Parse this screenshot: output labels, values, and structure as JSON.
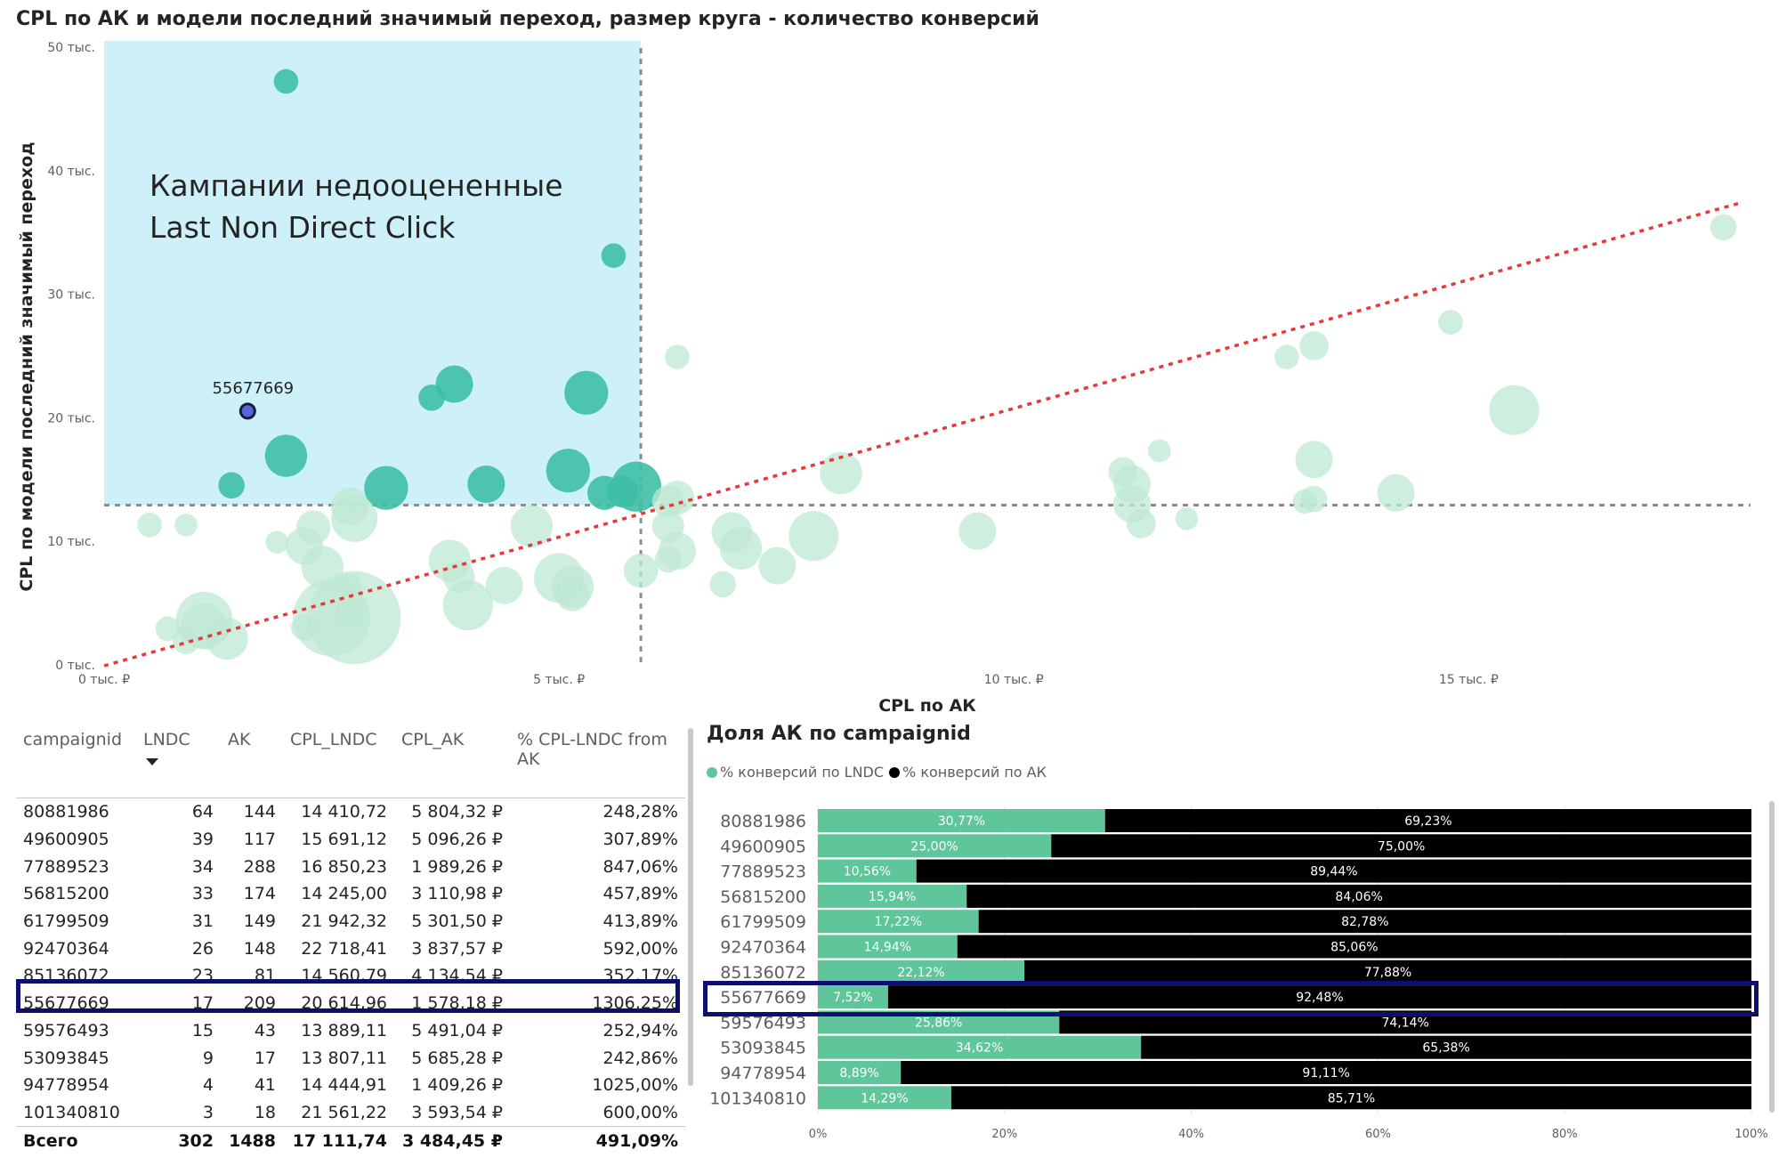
{
  "chart_data": [
    {
      "type": "scatter",
      "title": "CPL по АК и модели последний значимый переход, размер круга - количество конверсий",
      "xlabel": "CPL по АК",
      "ylabel": "CPL по модели последний значимый переход",
      "xlim": [
        0,
        18000
      ],
      "ylim": [
        0,
        50000
      ],
      "x_ticks": [
        0,
        5000,
        10000,
        15000
      ],
      "x_tick_labels": [
        "0 тыс. ₽",
        "5 тыс. ₽",
        "10 тыс. ₽",
        "15 тыс. ₽"
      ],
      "y_ticks": [
        0,
        10000,
        20000,
        30000,
        40000,
        50000
      ],
      "y_tick_labels": [
        "0 тыс.",
        "10 тыс.",
        "20 тыс.",
        "30 тыс.",
        "40 тыс.",
        "50 тыс."
      ],
      "threshold_x": 5900,
      "threshold_y": 13000,
      "trend_line": {
        "x": [
          0,
          18000
        ],
        "y": [
          0,
          37500
        ]
      },
      "region_annotation": {
        "line1": "Кампании недооцененные",
        "line2": "Last Non Direct Click"
      },
      "highlight": {
        "label": "55677669",
        "x": 1578,
        "y": 20615
      },
      "colors": {
        "region": "#cdf0f9",
        "in_region": "#3fbfa6",
        "out_region": "#bde8d3",
        "trend": "#e8393a",
        "threshold": "#8c8c8c",
        "highlight": "#5566dd"
      },
      "points": [
        {
          "x": 2000,
          "y": 47300,
          "c": 5
        },
        {
          "x": 5600,
          "y": 33200,
          "c": 5
        },
        {
          "x": 3850,
          "y": 22800,
          "c": 15
        },
        {
          "x": 3600,
          "y": 21700,
          "c": 6
        },
        {
          "x": 5300,
          "y": 22100,
          "c": 22
        },
        {
          "x": 2000,
          "y": 17000,
          "c": 20
        },
        {
          "x": 1400,
          "y": 14600,
          "c": 6
        },
        {
          "x": 3100,
          "y": 14400,
          "c": 22
        },
        {
          "x": 4200,
          "y": 14700,
          "c": 15
        },
        {
          "x": 5100,
          "y": 15800,
          "c": 22
        },
        {
          "x": 5500,
          "y": 14000,
          "c": 12
        },
        {
          "x": 5700,
          "y": 14100,
          "c": 10
        },
        {
          "x": 5850,
          "y": 14500,
          "c": 30
        },
        {
          "x": 6300,
          "y": 25000,
          "c": 5
        },
        {
          "x": 13000,
          "y": 25000,
          "c": 5
        },
        {
          "x": 13300,
          "y": 25900,
          "c": 8
        },
        {
          "x": 14800,
          "y": 27800,
          "c": 5
        },
        {
          "x": 17800,
          "y": 35500,
          "c": 6
        },
        {
          "x": 15500,
          "y": 20700,
          "c": 30
        },
        {
          "x": 8100,
          "y": 15600,
          "c": 20
        },
        {
          "x": 11600,
          "y": 17400,
          "c": 4
        },
        {
          "x": 11200,
          "y": 15700,
          "c": 8
        },
        {
          "x": 11300,
          "y": 14700,
          "c": 15
        },
        {
          "x": 13300,
          "y": 16700,
          "c": 15
        },
        {
          "x": 11300,
          "y": 13100,
          "c": 15
        },
        {
          "x": 11400,
          "y": 11500,
          "c": 8
        },
        {
          "x": 11900,
          "y": 11900,
          "c": 4
        },
        {
          "x": 13200,
          "y": 13300,
          "c": 5
        },
        {
          "x": 13300,
          "y": 13500,
          "c": 6
        },
        {
          "x": 14200,
          "y": 14000,
          "c": 15
        },
        {
          "x": 9600,
          "y": 10900,
          "c": 15
        },
        {
          "x": 6200,
          "y": 13300,
          "c": 10
        },
        {
          "x": 6300,
          "y": 13600,
          "c": 12
        },
        {
          "x": 6200,
          "y": 11300,
          "c": 10
        },
        {
          "x": 6300,
          "y": 9300,
          "c": 15
        },
        {
          "x": 6200,
          "y": 8600,
          "c": 6
        },
        {
          "x": 6900,
          "y": 10800,
          "c": 18
        },
        {
          "x": 7000,
          "y": 9500,
          "c": 20
        },
        {
          "x": 7400,
          "y": 8100,
          "c": 15
        },
        {
          "x": 7800,
          "y": 10500,
          "c": 30
        },
        {
          "x": 6800,
          "y": 6600,
          "c": 6
        },
        {
          "x": 5900,
          "y": 7700,
          "c": 12
        },
        {
          "x": 500,
          "y": 11400,
          "c": 5
        },
        {
          "x": 900,
          "y": 11400,
          "c": 4
        },
        {
          "x": 1900,
          "y": 10000,
          "c": 4
        },
        {
          "x": 2300,
          "y": 11200,
          "c": 12
        },
        {
          "x": 2200,
          "y": 9700,
          "c": 15
        },
        {
          "x": 2400,
          "y": 8000,
          "c": 20
        },
        {
          "x": 2700,
          "y": 12900,
          "c": 15
        },
        {
          "x": 2750,
          "y": 11900,
          "c": 25
        },
        {
          "x": 4700,
          "y": 11300,
          "c": 20
        },
        {
          "x": 3800,
          "y": 8500,
          "c": 20
        },
        {
          "x": 3900,
          "y": 7200,
          "c": 10
        },
        {
          "x": 4400,
          "y": 6500,
          "c": 15
        },
        {
          "x": 4000,
          "y": 4900,
          "c": 30
        },
        {
          "x": 5000,
          "y": 7100,
          "c": 30
        },
        {
          "x": 5150,
          "y": 6400,
          "c": 20
        },
        {
          "x": 5150,
          "y": 5800,
          "c": 12
        },
        {
          "x": 2700,
          "y": 6500,
          "c": 5
        },
        {
          "x": 1100,
          "y": 3700,
          "c": 40
        },
        {
          "x": 1100,
          "y": 3200,
          "c": 25
        },
        {
          "x": 1350,
          "y": 2200,
          "c": 20
        },
        {
          "x": 700,
          "y": 3000,
          "c": 5
        },
        {
          "x": 900,
          "y": 2000,
          "c": 6
        },
        {
          "x": 2200,
          "y": 3100,
          "c": 6
        },
        {
          "x": 2500,
          "y": 3900,
          "c": 80
        },
        {
          "x": 2750,
          "y": 3900,
          "c": 120
        },
        {
          "x": 2700,
          "y": 4200,
          "c": 8
        }
      ]
    },
    {
      "type": "bar",
      "orientation": "horizontal",
      "stacked": true,
      "title": "Доля АК по campaignid",
      "categories": [
        "80881986",
        "49600905",
        "77889523",
        "56815200",
        "61799509",
        "92470364",
        "85136072",
        "55677669",
        "59576493",
        "53093845",
        "94778954",
        "101340810"
      ],
      "series": [
        {
          "name": "% конверсий по LNDC",
          "color": "#5ec69a",
          "values": [
            30.77,
            25.0,
            10.56,
            15.94,
            17.22,
            14.94,
            22.12,
            7.52,
            25.86,
            34.62,
            8.89,
            14.29
          ],
          "labels": [
            "30,77%",
            "25,00%",
            "10,56%",
            "15,94%",
            "17,22%",
            "14,94%",
            "22,12%",
            "7,52%",
            "25,86%",
            "34,62%",
            "8,89%",
            "14,29%"
          ]
        },
        {
          "name": "% конверсий по АК",
          "color": "#000000",
          "values": [
            69.23,
            75.0,
            89.44,
            84.06,
            82.78,
            85.06,
            77.88,
            92.48,
            74.14,
            65.38,
            91.11,
            85.71
          ],
          "labels": [
            "69,23%",
            "75,00%",
            "89,44%",
            "84,06%",
            "82,78%",
            "85,06%",
            "77,88%",
            "92,48%",
            "74,14%",
            "65,38%",
            "91,11%",
            "85,71%"
          ]
        }
      ],
      "x_ticks": [
        0,
        20,
        40,
        60,
        80,
        100
      ],
      "x_tick_labels": [
        "0%",
        "20%",
        "40%",
        "60%",
        "80%",
        "100%"
      ],
      "xlim": [
        0,
        100
      ],
      "highlight_category": "55677669"
    },
    {
      "type": "table",
      "columns": [
        "campaignid",
        "LNDC",
        "AK",
        "CPL_LNDC",
        "CPL_AK",
        "% CPL-LNDC from AK"
      ],
      "highlight_row": "55677669",
      "rows": [
        [
          "80881986",
          "64",
          "144",
          "14 410,72",
          "5 804,32 ₽",
          "248,28%"
        ],
        [
          "49600905",
          "39",
          "117",
          "15 691,12",
          "5 096,26 ₽",
          "307,89%"
        ],
        [
          "77889523",
          "34",
          "288",
          "16 850,23",
          "1 989,26 ₽",
          "847,06%"
        ],
        [
          "56815200",
          "33",
          "174",
          "14 245,00",
          "3 110,98 ₽",
          "457,89%"
        ],
        [
          "61799509",
          "31",
          "149",
          "21 942,32",
          "5 301,50 ₽",
          "413,89%"
        ],
        [
          "92470364",
          "26",
          "148",
          "22 718,41",
          "3 837,57 ₽",
          "592,00%"
        ],
        [
          "85136072",
          "23",
          "81",
          "14 560,79",
          "4 134,54 ₽",
          "352,17%"
        ],
        [
          "55677669",
          "17",
          "209",
          "20 614,96",
          "1 578,18 ₽",
          "1306,25%"
        ],
        [
          "59576493",
          "15",
          "43",
          "13 889,11",
          "5 491,04 ₽",
          "252,94%"
        ],
        [
          "53093845",
          "9",
          "17",
          "13 807,11",
          "5 685,28 ₽",
          "242,86%"
        ],
        [
          "94778954",
          "4",
          "41",
          "14 444,91",
          "1 409,26 ₽",
          "1025,00%"
        ],
        [
          "101340810",
          "3",
          "18",
          "21 561,22",
          "3 593,54 ₽",
          "600,00%"
        ]
      ],
      "total": [
        "Всего",
        "302",
        "1488",
        "17 111,74",
        "3 484,45 ₽",
        "491,09%"
      ]
    }
  ]
}
